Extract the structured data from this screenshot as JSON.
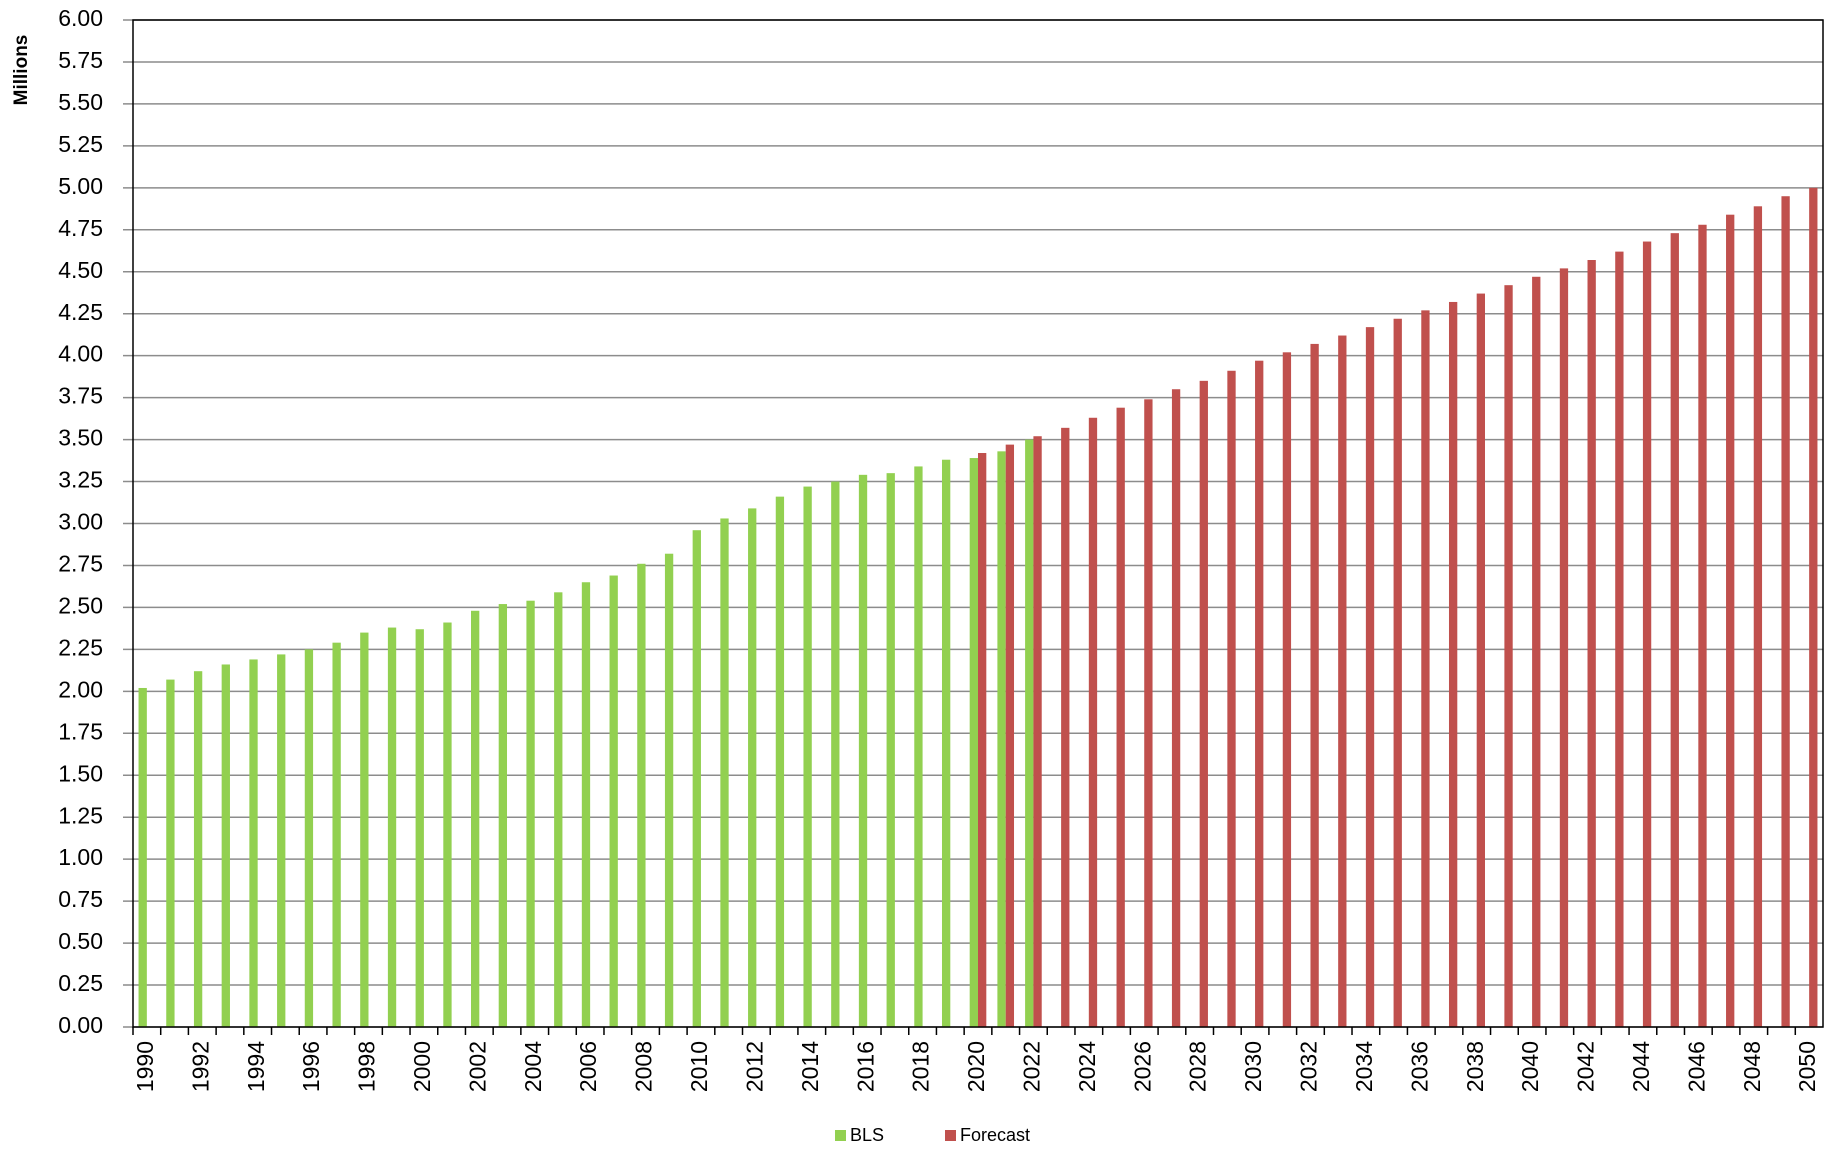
{
  "chart_data": {
    "type": "bar",
    "y_label": "Millions",
    "categories": [
      "1990",
      null,
      "1992",
      null,
      "1994",
      null,
      "1996",
      null,
      "1998",
      null,
      "2000",
      null,
      "2002",
      null,
      "2004",
      null,
      "2006",
      null,
      "2008",
      null,
      "2010",
      null,
      "2012",
      null,
      "2014",
      null,
      "2016",
      null,
      "2018",
      null,
      "2020",
      null,
      "2022",
      null,
      "2024",
      null,
      "2026",
      null,
      "2028",
      null,
      "2030",
      null,
      "2032",
      null,
      "2034",
      null,
      "2036",
      null,
      "2038",
      null,
      "2040",
      null,
      "2042",
      null,
      "2044",
      null,
      "2046",
      null,
      "2048",
      null,
      "2050"
    ],
    "series": [
      {
        "name": "BLS",
        "color": "#92d050",
        "values": [
          2.02,
          2.07,
          2.12,
          2.16,
          2.19,
          2.22,
          2.25,
          2.29,
          2.35,
          2.38,
          2.37,
          2.41,
          2.48,
          2.52,
          2.54,
          2.59,
          2.65,
          2.69,
          2.76,
          2.82,
          2.96,
          3.03,
          3.09,
          3.16,
          3.22,
          3.25,
          3.29,
          3.3,
          3.34,
          3.38,
          3.39,
          3.43,
          3.5,
          null,
          null,
          null,
          null,
          null,
          null,
          null,
          null,
          null,
          null,
          null,
          null,
          null,
          null,
          null,
          null,
          null,
          null,
          null,
          null,
          null,
          null,
          null,
          null,
          null,
          null,
          null,
          null
        ]
      },
      {
        "name": "Forecast",
        "color": "#c0504d",
        "values": [
          null,
          null,
          null,
          null,
          null,
          null,
          null,
          null,
          null,
          null,
          null,
          null,
          null,
          null,
          null,
          null,
          null,
          null,
          null,
          null,
          null,
          null,
          null,
          null,
          null,
          null,
          null,
          null,
          null,
          null,
          3.42,
          3.47,
          3.52,
          3.57,
          3.63,
          3.69,
          3.74,
          3.8,
          3.85,
          3.91,
          3.97,
          4.02,
          4.07,
          4.12,
          4.17,
          4.22,
          4.27,
          4.32,
          4.37,
          4.42,
          4.47,
          4.52,
          4.57,
          4.62,
          4.68,
          4.73,
          4.78,
          4.84,
          4.89,
          4.95,
          5.0
        ]
      }
    ],
    "ylim": [
      0,
      6
    ],
    "yticks": [
      {
        "value": 0,
        "label": "0.00"
      },
      {
        "value": 0.25,
        "label": "0.25"
      },
      {
        "value": 0.5,
        "label": "0.50"
      },
      {
        "value": 0.75,
        "label": "0.75"
      },
      {
        "value": 1,
        "label": "1.00"
      },
      {
        "value": 1.25,
        "label": "1.25"
      },
      {
        "value": 1.5,
        "label": "1.50"
      },
      {
        "value": 1.75,
        "label": "1.75"
      },
      {
        "value": 2,
        "label": "2.00"
      },
      {
        "value": 2.25,
        "label": "2.25"
      },
      {
        "value": 2.5,
        "label": "2.50"
      },
      {
        "value": 2.75,
        "label": "2.75"
      },
      {
        "value": 3,
        "label": "3.00"
      },
      {
        "value": 3.25,
        "label": "3.25"
      },
      {
        "value": 3.5,
        "label": "3.50"
      },
      {
        "value": 3.75,
        "label": "3.75"
      },
      {
        "value": 4,
        "label": "4.00"
      },
      {
        "value": 4.25,
        "label": "4.25"
      },
      {
        "value": 4.5,
        "label": "4.50"
      },
      {
        "value": 4.75,
        "label": "4.75"
      },
      {
        "value": 5,
        "label": "5.00"
      },
      {
        "value": 5.25,
        "label": "5.25"
      },
      {
        "value": 5.5,
        "label": "5.50"
      },
      {
        "value": 5.75,
        "label": "5.75"
      },
      {
        "value": 6,
        "label": "6.00"
      }
    ],
    "grid": true,
    "legend": "bottom"
  }
}
